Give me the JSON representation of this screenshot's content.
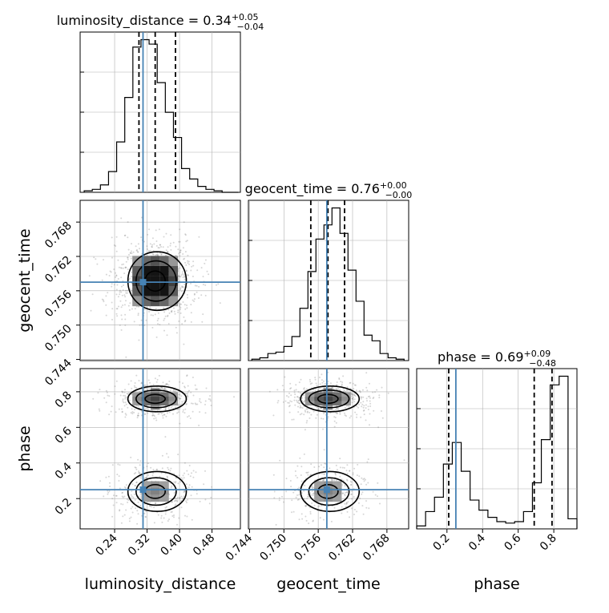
{
  "chart_data": {
    "type": "corner",
    "parameters": [
      "luminosity_distance",
      "geocent_time",
      "phase"
    ],
    "truths": {
      "luminosity_distance": 0.31,
      "geocent_time": 0.7575,
      "phase": 0.25
    },
    "colors": {
      "truth": "#4682b4",
      "hist": "#000000",
      "grid": "#b0b0b0"
    },
    "titles": [
      {
        "param": "luminosity_distance",
        "median": "0.34",
        "plus": "+0.05",
        "minus": "−0.04"
      },
      {
        "param": "geocent_time",
        "median": "0.76",
        "plus": "+0.00",
        "minus": "−0.00"
      },
      {
        "param": "phase",
        "median": "0.69",
        "plus": "+0.09",
        "minus": "−0.48"
      }
    ],
    "axes": {
      "luminosity_distance": {
        "range": [
          0.155,
          0.55
        ],
        "ticks": [
          0.24,
          0.32,
          0.4,
          0.48
        ],
        "tick_labels": [
          "0.24",
          "0.32",
          "0.40",
          "0.48"
        ],
        "label": "luminosity_distance"
      },
      "geocent_time": {
        "range": [
          0.7438,
          0.7718
        ],
        "ticks": [
          0.744,
          0.75,
          0.756,
          0.762,
          0.768
        ],
        "tick_labels": [
          "0.744",
          "0.750",
          "0.756",
          "0.762",
          "0.768"
        ],
        "label": "geocent_time"
      },
      "phase": {
        "range": [
          0.03,
          0.93
        ],
        "ticks": [
          0.2,
          0.4,
          0.6,
          0.8
        ],
        "tick_labels": [
          "0.2",
          "0.4",
          "0.6",
          "0.8"
        ],
        "label": "phase"
      }
    },
    "histograms": [
      {
        "param": "luminosity_distance",
        "bins": [
          0.165,
          0.185,
          0.205,
          0.225,
          0.245,
          0.265,
          0.285,
          0.305,
          0.325,
          0.345,
          0.365,
          0.385,
          0.405,
          0.425,
          0.445,
          0.465,
          0.485,
          0.505,
          0.525,
          0.545
        ],
        "counts": [
          1,
          2,
          5,
          14,
          34,
          64,
          98,
          103,
          100,
          74,
          54,
          37,
          16,
          9,
          4,
          2,
          1,
          0,
          0
        ],
        "quantiles": [
          0.3,
          0.34,
          0.39
        ]
      },
      {
        "param": "geocent_time",
        "bins": [
          0.7444,
          0.7458,
          0.7472,
          0.7486,
          0.75,
          0.7514,
          0.7528,
          0.7542,
          0.7556,
          0.757,
          0.7584,
          0.7598,
          0.7612,
          0.7626,
          0.764,
          0.7654,
          0.7668,
          0.7682,
          0.7696,
          0.771
        ],
        "counts": [
          1,
          2,
          5,
          6,
          10,
          17,
          37,
          63,
          86,
          96,
          108,
          90,
          64,
          42,
          18,
          14,
          5,
          2,
          1
        ],
        "quantiles": [
          0.7547,
          0.7577,
          0.7606
        ]
      },
      {
        "param": "phase",
        "bins": [
          0.03,
          0.08,
          0.13,
          0.18,
          0.23,
          0.28,
          0.33,
          0.38,
          0.43,
          0.48,
          0.53,
          0.58,
          0.63,
          0.68,
          0.73,
          0.78,
          0.83,
          0.88,
          0.93
        ],
        "counts": [
          2,
          12,
          22,
          45,
          60,
          40,
          20,
          13,
          8,
          5,
          4,
          5,
          12,
          32,
          62,
          100,
          106,
          7
        ],
        "quantiles": [
          0.21,
          0.69,
          0.79
        ]
      }
    ]
  }
}
